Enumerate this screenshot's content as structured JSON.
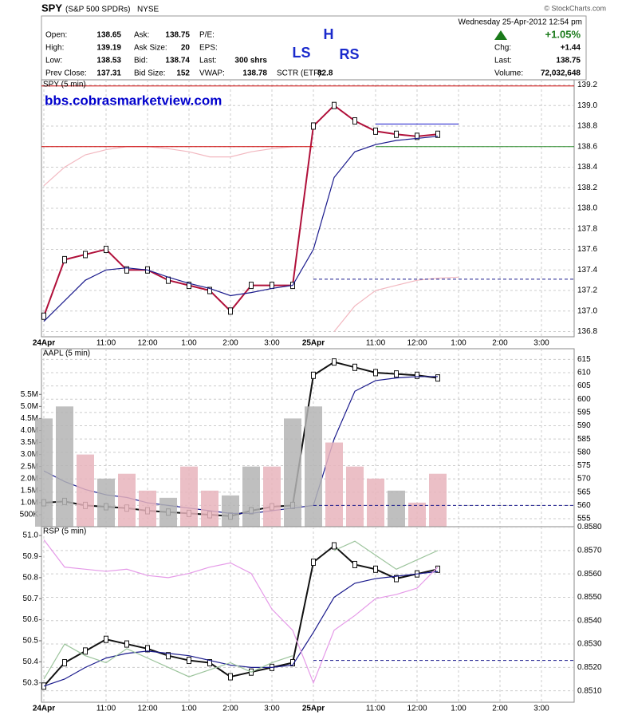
{
  "header": {
    "symbol": "SPY",
    "name": "(S&P 500 SPDRs)",
    "exchange": "NYSE",
    "source": "© StockCharts.com",
    "date": "Wednesday   25-Apr-2012   12:54 pm",
    "change_pct": "+1.05%",
    "rows": [
      [
        "Open:",
        "138.65",
        "Ask:",
        "138.75",
        "P/E:"
      ],
      [
        "High:",
        "139.19",
        "Ask Size:",
        "20",
        "EPS:"
      ],
      [
        "Low:",
        "138.53",
        "Bid:",
        "138.74",
        "Last:",
        "300 shrs"
      ],
      [
        "Prev Close:",
        "137.31",
        "Bid Size:",
        "152",
        "VWAP:",
        "138.78",
        "SCTR (ETF):",
        "82.8"
      ]
    ],
    "right_rows": [
      [
        "Chg:",
        "+1.44"
      ],
      [
        "Last:",
        "138.75"
      ],
      [
        "Volume:",
        "72,032,648"
      ]
    ]
  },
  "chart_data": [
    {
      "type": "line",
      "title": "SPY (5 min)",
      "categories": [
        "24Apr",
        null,
        null,
        "11:00",
        null,
        "12:00",
        null,
        "1:00",
        null,
        "2:00",
        null,
        "3:00",
        null,
        "25Apr",
        null,
        null,
        "11:00",
        null,
        "12:00",
        null,
        "1:00",
        null,
        "2:00",
        null,
        "3:00",
        null
      ],
      "series": [
        {
          "name": "SPY (5 min)",
          "color": "#b0103a",
          "values": [
            136.95,
            137.5,
            137.55,
            137.6,
            137.4,
            137.4,
            137.3,
            137.25,
            137.2,
            137.0,
            137.25,
            137.25,
            137.25,
            138.8,
            139.0,
            138.85,
            138.75,
            138.72,
            138.7,
            138.72,
            null,
            null,
            null,
            null,
            null,
            null
          ]
        },
        {
          "color": "#1a1a8c",
          "values": [
            136.9,
            137.1,
            137.3,
            137.4,
            137.42,
            137.4,
            137.33,
            137.27,
            137.22,
            137.15,
            137.18,
            137.22,
            137.25,
            137.6,
            138.3,
            138.55,
            138.62,
            138.66,
            138.68,
            138.7,
            null,
            null,
            null,
            null,
            null,
            null
          ]
        },
        {
          "color": "#f2b8c0",
          "values": [
            138.22,
            138.4,
            138.52,
            138.57,
            138.6,
            138.6,
            138.58,
            138.55,
            138.5,
            138.5,
            138.55,
            138.58,
            138.6,
            null,
            136.8,
            137.05,
            137.2,
            137.25,
            137.3,
            137.32,
            137.33,
            null,
            null,
            null,
            null,
            null
          ]
        }
      ],
      "hlines": [
        {
          "value": 139.19,
          "color": "#cc0000",
          "from": 0,
          "to": 25
        },
        {
          "value": 138.6,
          "color": "#cc0000",
          "from": 0,
          "to": 13
        },
        {
          "value": 138.6,
          "color": "#2a8a2a",
          "from": 16,
          "to": 25
        },
        {
          "value": 138.82,
          "color": "#1a1acc",
          "from": 16,
          "to": 20
        },
        {
          "value": 137.31,
          "color": "#1a1a8c",
          "from": 13,
          "to": 25,
          "dashed": true
        }
      ],
      "annotations": [
        "bbs.cobrasmarketview.com",
        "LS",
        "H",
        "RS"
      ],
      "ylim": [
        136.75,
        139.25
      ],
      "yticks": [
        136.8,
        {
          "value": 137,
          "label": "137.0"
        },
        137.2,
        137.4,
        137.6,
        137.8,
        {
          "value": 138,
          "label": "138.0"
        },
        138.2,
        138.4,
        138.6,
        138.8,
        {
          "value": 139,
          "label": "139.0"
        },
        139.2
      ],
      "grid": true
    },
    {
      "type": "line",
      "title": "AAPL (5 min)",
      "series": [
        {
          "name": "AAPL (5 min)",
          "color": "#111111",
          "values": [
            561,
            561.5,
            560,
            559.5,
            559,
            558,
            557.5,
            557,
            556.5,
            556,
            558,
            559.5,
            560,
            609,
            614,
            612,
            610,
            609.5,
            609,
            608,
            null,
            null,
            null,
            null,
            null,
            null
          ]
        },
        {
          "color": "#1a1a8c",
          "values": [
            573,
            569,
            566,
            564,
            563,
            561,
            560,
            559,
            558,
            557,
            557,
            558,
            559,
            560,
            585,
            603,
            607,
            608,
            608.5,
            608.5,
            null,
            null,
            null,
            null,
            null,
            null
          ]
        },
        {
          "type": "bar",
          "axis": "y2",
          "values": [
            4500000,
            5000000,
            3000000,
            2000000,
            2200000,
            1500000,
            1200000,
            2500000,
            1500000,
            1300000,
            2500000,
            2500000,
            4500000,
            5000000,
            3500000,
            2500000,
            2000000,
            1500000,
            1000000,
            2200000,
            null,
            null,
            null,
            null,
            null,
            null
          ],
          "colors": [
            "#b4b4b4",
            "#b4b4b4",
            "#e8b4bc",
            "#b4b4b4",
            "#e8b4bc",
            "#e8b4bc",
            "#b4b4b4",
            "#e8b4bc",
            "#e8b4bc",
            "#b4b4b4",
            "#b4b4b4",
            "#e8b4bc",
            "#b4b4b4",
            "#b4b4b4",
            "#e8b4bc",
            "#e8b4bc",
            "#e8b4bc",
            "#b4b4b4",
            "#e8b4bc",
            "#e8b4bc",
            null,
            null,
            null,
            null,
            null,
            null
          ]
        }
      ],
      "hlines": [
        {
          "value": 560,
          "color": "#1a1a8c",
          "from": 13,
          "to": 25,
          "dashed": true
        }
      ],
      "ylim": [
        552,
        619
      ],
      "yticks": [
        555,
        560,
        565,
        570,
        575,
        580,
        585,
        590,
        595,
        600,
        605,
        610,
        615
      ],
      "y2lim": [
        0,
        7400000
      ],
      "y2ticks": [
        {
          "value": 500000,
          "label": "500K"
        },
        {
          "value": 1000000,
          "label": "1.0M"
        },
        {
          "value": 1500000,
          "label": "1.5M"
        },
        {
          "value": 2000000,
          "label": "2.0M"
        },
        {
          "value": 2500000,
          "label": "2.5M"
        },
        {
          "value": 3000000,
          "label": "3.0M"
        },
        {
          "value": 3500000,
          "label": "3.5M"
        },
        {
          "value": 4000000,
          "label": "4.0M"
        },
        {
          "value": 4500000,
          "label": "4.5M"
        },
        {
          "value": 5000000,
          "label": "5.0M"
        },
        {
          "value": 5500000,
          "label": "5.5M"
        }
      ],
      "grid": true
    },
    {
      "type": "line",
      "title": "RSP (5 min)",
      "categories": [
        "24Apr",
        null,
        null,
        "11:00",
        null,
        "12:00",
        null,
        "1:00",
        null,
        "2:00",
        null,
        "3:00",
        null,
        "25Apr",
        null,
        null,
        "11:00",
        null,
        "12:00",
        null,
        "1:00",
        null,
        "2:00",
        null,
        "3:00",
        null
      ],
      "series": [
        {
          "name": "RSP (5 min)",
          "color": "#111111",
          "values": [
            0.8512,
            0.8522,
            0.8527,
            0.8532,
            0.853,
            0.8528,
            0.8525,
            0.8523,
            0.8522,
            0.8516,
            0.8518,
            0.852,
            0.8522,
            0.8565,
            0.8572,
            0.8564,
            0.8562,
            0.8558,
            0.856,
            0.8562,
            null,
            null,
            null,
            null,
            null,
            null
          ]
        },
        {
          "color": "#1a1a8c",
          "values": [
            0.8512,
            0.8515,
            0.852,
            0.8524,
            0.8526,
            0.8527,
            0.8526,
            0.8525,
            0.8523,
            0.8521,
            0.852,
            0.852,
            0.8521,
            0.8535,
            0.855,
            0.8556,
            0.8558,
            0.8559,
            0.856,
            0.8561,
            null,
            null,
            null,
            null,
            null,
            null
          ]
        },
        {
          "color": "#9cc49c",
          "values": [
            0.8515,
            0.853,
            0.8525,
            0.8522,
            0.8528,
            0.8524,
            0.852,
            0.8516,
            0.8519,
            0.8522,
            0.8518,
            0.8522,
            0.8525,
            null,
            0.857,
            0.8574,
            0.8568,
            0.8562,
            0.8566,
            0.857,
            null,
            null,
            null,
            null,
            null,
            null
          ]
        },
        {
          "color": "#e59ae8",
          "axis": "y2",
          "values": [
            50.98,
            50.85,
            50.84,
            50.83,
            50.84,
            50.81,
            50.8,
            50.82,
            50.85,
            50.87,
            50.82,
            50.65,
            50.55,
            50.3,
            50.55,
            50.62,
            50.7,
            50.72,
            50.75,
            50.85,
            null,
            null,
            null,
            null,
            null,
            null
          ]
        }
      ],
      "hlines": [
        {
          "value": 0.8523,
          "color": "#1a1a8c",
          "from": 13,
          "to": 25,
          "dashed": true
        }
      ],
      "ylim": [
        0.85051,
        0.85802
      ],
      "yticks": [
        {
          "value": 0.851,
          "label": "0.8510"
        },
        {
          "value": 0.852,
          "label": "0.8520"
        },
        {
          "value": 0.853,
          "label": "0.8530"
        },
        {
          "value": 0.854,
          "label": "0.8540"
        },
        {
          "value": 0.855,
          "label": "0.8550"
        },
        {
          "value": 0.856,
          "label": "0.8560"
        },
        {
          "value": 0.857,
          "label": "0.8570"
        },
        {
          "value": 0.858,
          "label": "0.8580"
        }
      ],
      "y2lim": [
        50.208,
        51.042
      ],
      "y2ticks": [
        50.3,
        50.4,
        50.5,
        50.6,
        50.7,
        50.8,
        50.9,
        {
          "value": 51,
          "label": "51.0"
        }
      ],
      "grid": true
    }
  ]
}
